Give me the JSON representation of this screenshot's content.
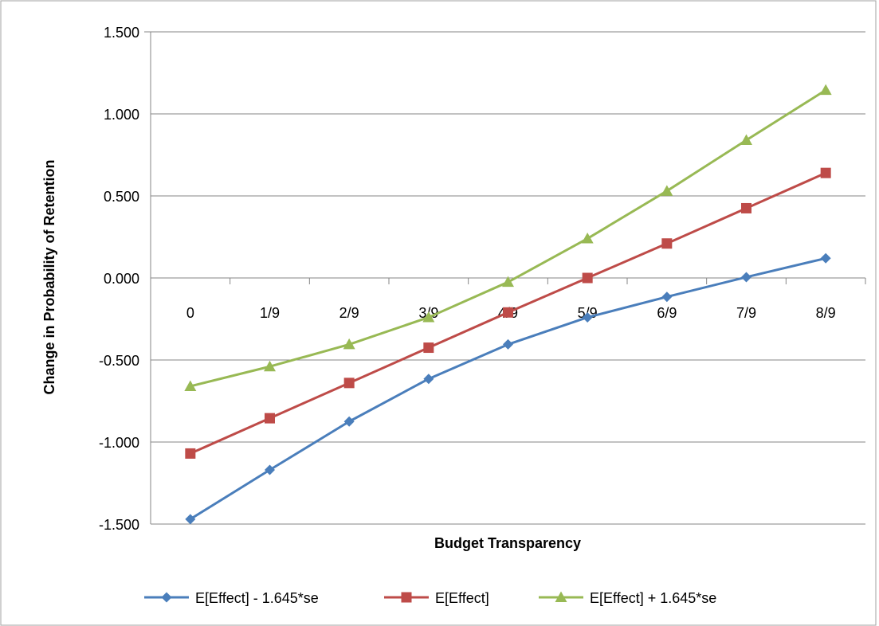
{
  "chart_data": {
    "type": "line",
    "title": "",
    "xlabel": "Budget Transparency",
    "ylabel": "Change in Probability of Retention",
    "categories": [
      "0",
      "1/9",
      "2/9",
      "3/9",
      "4/9",
      "5/9",
      "6/9",
      "7/9",
      "8/9"
    ],
    "yticks": [
      "1.500",
      "1.000",
      "0.500",
      "0.000",
      "-0.500",
      "-1.000",
      "-1.500"
    ],
    "ylim": [
      -1.5,
      1.5
    ],
    "grid": true,
    "legend_position": "bottom",
    "series": [
      {
        "name": "E[Effect] - 1.645*se",
        "color": "#4a7ebb",
        "marker": "diamond",
        "values": [
          -1.47,
          -1.17,
          -0.875,
          -0.615,
          -0.405,
          -0.24,
          -0.115,
          0.005,
          0.12
        ]
      },
      {
        "name": "E[Effect]",
        "color": "#be4b48",
        "marker": "square",
        "values": [
          -1.07,
          -0.855,
          -0.64,
          -0.425,
          -0.21,
          0.0,
          0.21,
          0.425,
          0.64
        ]
      },
      {
        "name": "E[Effect] + 1.645*se",
        "color": "#98b954",
        "marker": "triangle",
        "values": [
          -0.66,
          -0.54,
          -0.405,
          -0.24,
          -0.025,
          0.24,
          0.53,
          0.84,
          1.145
        ]
      }
    ]
  }
}
